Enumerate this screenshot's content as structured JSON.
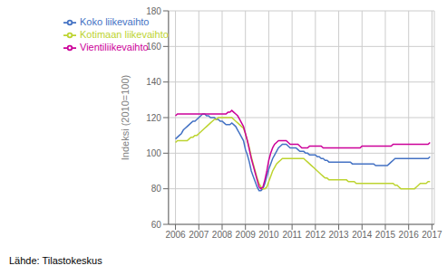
{
  "chart_data": {
    "type": "line",
    "title": "",
    "y_label": "Indeksi (2010=100)",
    "annotations": [
      "Lähde: Tilastokeskus"
    ],
    "x": [
      2006,
      2006.0833,
      2006.1667,
      2006.25,
      2006.3333,
      2006.4167,
      2006.5,
      2006.5833,
      2006.6667,
      2006.75,
      2006.8333,
      2006.9167,
      2007,
      2007.0833,
      2007.1667,
      2007.25,
      2007.3333,
      2007.4167,
      2007.5,
      2007.5833,
      2007.6667,
      2007.75,
      2007.8333,
      2007.9167,
      2008,
      2008.0833,
      2008.1667,
      2008.25,
      2008.3333,
      2008.4167,
      2008.5,
      2008.5833,
      2008.6667,
      2008.75,
      2008.8333,
      2008.9167,
      2009,
      2009.0833,
      2009.1667,
      2009.25,
      2009.3333,
      2009.4167,
      2009.5,
      2009.5833,
      2009.6667,
      2009.75,
      2009.8333,
      2009.9167,
      2010,
      2010.0833,
      2010.1667,
      2010.25,
      2010.3333,
      2010.4167,
      2010.5,
      2010.5833,
      2010.6667,
      2010.75,
      2010.8333,
      2010.9167,
      2011,
      2011.0833,
      2011.1667,
      2011.25,
      2011.3333,
      2011.4167,
      2011.5,
      2011.5833,
      2011.6667,
      2011.75,
      2011.8333,
      2011.9167,
      2012,
      2012.0833,
      2012.1667,
      2012.25,
      2012.3333,
      2012.4167,
      2012.5,
      2012.5833,
      2012.6667,
      2012.75,
      2012.8333,
      2012.9167,
      2013,
      2013.0833,
      2013.1667,
      2013.25,
      2013.3333,
      2013.4167,
      2013.5,
      2013.5833,
      2013.6667,
      2013.75,
      2013.8333,
      2013.9167,
      2014,
      2014.0833,
      2014.1667,
      2014.25,
      2014.3333,
      2014.4167,
      2014.5,
      2014.5833,
      2014.6667,
      2014.75,
      2014.8333,
      2014.9167,
      2015,
      2015.0833,
      2015.1667,
      2015.25,
      2015.3333,
      2015.4167,
      2015.5,
      2015.5833,
      2015.6667,
      2015.75,
      2015.8333,
      2015.9167,
      2016,
      2016.0833,
      2016.1667,
      2016.25,
      2016.3333,
      2016.4167,
      2016.5,
      2016.5833,
      2016.6667,
      2016.75,
      2016.8333,
      2016.9167
    ],
    "series": [
      {
        "name": "Koko liikevaihto",
        "color": "#4472c4",
        "values": [
          108,
          109,
          110,
          111,
          113,
          114,
          115,
          116,
          117,
          118,
          118,
          119,
          120,
          121,
          122,
          122,
          121,
          121,
          120,
          120,
          120,
          119,
          119,
          118,
          118,
          117,
          116,
          116,
          116,
          117,
          116,
          115,
          113,
          111,
          109,
          107,
          102,
          99,
          95,
          90,
          87,
          84,
          81,
          79,
          79,
          80,
          83,
          87,
          91,
          94,
          97,
          99,
          101,
          103,
          104,
          105,
          105,
          105,
          104,
          103,
          103,
          103,
          103,
          102,
          101,
          101,
          101,
          100,
          100,
          99,
          99,
          99,
          99,
          98,
          98,
          97,
          97,
          96,
          96,
          95,
          95,
          95,
          95,
          95,
          95,
          95,
          95,
          95,
          95,
          95,
          95,
          94,
          94,
          94,
          94,
          94,
          94,
          94,
          94,
          94,
          94,
          94,
          94,
          93,
          93,
          93,
          93,
          93,
          93,
          93,
          94,
          95,
          96,
          97,
          97,
          97,
          97,
          97,
          97,
          97,
          97,
          97,
          97,
          97,
          97,
          97,
          97,
          97,
          97,
          97,
          97,
          98
        ]
      },
      {
        "name": "Kotimaan liikevaihto",
        "color": "#bdd430",
        "values": [
          106,
          107,
          107,
          107,
          107,
          107,
          107,
          108,
          109,
          109,
          110,
          110,
          111,
          112,
          113,
          114,
          115,
          116,
          117,
          118,
          119,
          119,
          120,
          120,
          120,
          120,
          120,
          120,
          120,
          120,
          119,
          118,
          117,
          116,
          115,
          114,
          111,
          107,
          103,
          98,
          94,
          90,
          86,
          83,
          81,
          80,
          80,
          81,
          84,
          87,
          90,
          92,
          94,
          95,
          96,
          97,
          97,
          97,
          97,
          97,
          97,
          97,
          97,
          97,
          97,
          97,
          97,
          96,
          95,
          94,
          93,
          92,
          91,
          90,
          89,
          88,
          87,
          86,
          86,
          85,
          85,
          85,
          85,
          85,
          85,
          85,
          85,
          85,
          85,
          84,
          84,
          84,
          84,
          83,
          83,
          83,
          83,
          83,
          83,
          83,
          83,
          83,
          83,
          83,
          83,
          83,
          83,
          83,
          83,
          83,
          83,
          83,
          83,
          82,
          82,
          81,
          80,
          80,
          80,
          80,
          80,
          80,
          80,
          80,
          81,
          82,
          83,
          83,
          83,
          83,
          84,
          84
        ]
      },
      {
        "name": "Vientiliikevaihto",
        "color": "#cc0099",
        "values": [
          121,
          122,
          122,
          122,
          122,
          122,
          122,
          122,
          122,
          122,
          122,
          122,
          122,
          122,
          122,
          122,
          122,
          122,
          122,
          122,
          122,
          122,
          122,
          122,
          122,
          122,
          122,
          123,
          123,
          124,
          123,
          122,
          121,
          119,
          117,
          115,
          111,
          107,
          102,
          97,
          93,
          89,
          85,
          81,
          80,
          81,
          85,
          90,
          96,
          100,
          103,
          105,
          106,
          107,
          107,
          107,
          107,
          107,
          106,
          105,
          105,
          105,
          105,
          105,
          104,
          103,
          103,
          103,
          103,
          104,
          104,
          104,
          104,
          104,
          104,
          104,
          103,
          103,
          103,
          103,
          103,
          103,
          103,
          103,
          103,
          103,
          103,
          103,
          103,
          103,
          103,
          103,
          103,
          103,
          103,
          103,
          104,
          104,
          104,
          104,
          104,
          104,
          104,
          104,
          104,
          104,
          104,
          104,
          104,
          104,
          104,
          104,
          105,
          105,
          105,
          105,
          105,
          105,
          105,
          105,
          105,
          105,
          105,
          105,
          105,
          105,
          105,
          105,
          105,
          105,
          105,
          106
        ]
      }
    ],
    "xlim": [
      2005.7,
      2017.1
    ],
    "xticks": [
      2006,
      2007,
      2008,
      2009,
      2010,
      2011,
      2012,
      2013,
      2014,
      2015,
      2016,
      2017
    ],
    "ylim": [
      60,
      180
    ],
    "yticks": [
      60,
      80,
      100,
      120,
      140,
      160,
      180
    ],
    "grid": true,
    "legend": "upper left"
  }
}
